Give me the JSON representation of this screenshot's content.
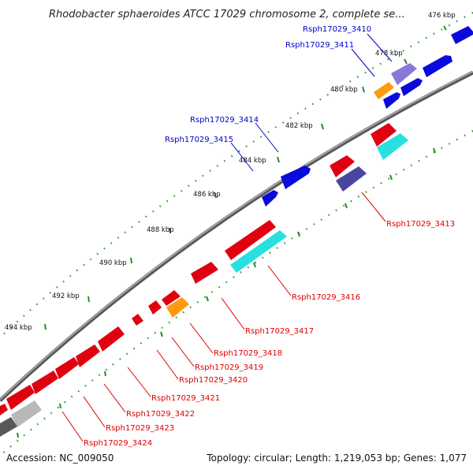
{
  "title": "Rhodobacter sphaeroides ATCC 17029 chromosome 2, complete se...",
  "footer": {
    "accession": "Accession: NC_009050",
    "summary": "Topology: circular; Length: 1,219,053 bp; Genes: 1,077"
  },
  "tick_labels": [
    "476 kbp",
    "478 kbp",
    "480 kbp",
    "482 kbp",
    "484 kbp",
    "486 kbp",
    "488 kbp",
    "490 kbp",
    "492 kbp",
    "494 kbp"
  ],
  "colors": {
    "forward_gene": "#0a0adc",
    "reverse_gene": "#e00010",
    "rna_gene": "#ff9a10",
    "forward_cds_alt": "#8878d8",
    "reverse_cds_alt": "#28e0e0",
    "reverse_cds_dark": "#4a46a0",
    "pseudo": "#b8b8b8",
    "forward_label": "#0000cc",
    "reverse_label": "#dd0000"
  },
  "gene_labels": [
    {
      "id": "Rsph17029_3410",
      "color": "forward_label"
    },
    {
      "id": "Rsph17029_3411",
      "color": "forward_label"
    },
    {
      "id": "Rsph17029_3414",
      "color": "forward_label"
    },
    {
      "id": "Rsph17029_3415",
      "color": "forward_label"
    },
    {
      "id": "Rsph17029_3413",
      "color": "reverse_label"
    },
    {
      "id": "Rsph17029_3416",
      "color": "reverse_label"
    },
    {
      "id": "Rsph17029_3417",
      "color": "reverse_label"
    },
    {
      "id": "Rsph17029_3418",
      "color": "reverse_label"
    },
    {
      "id": "Rsph17029_3419",
      "color": "reverse_label"
    },
    {
      "id": "Rsph17029_3420",
      "color": "reverse_label"
    },
    {
      "id": "Rsph17029_3421",
      "color": "reverse_label"
    },
    {
      "id": "Rsph17029_3422",
      "color": "reverse_label"
    },
    {
      "id": "Rsph17029_3423",
      "color": "reverse_label"
    },
    {
      "id": "Rsph17029_3424",
      "color": "reverse_label"
    }
  ]
}
